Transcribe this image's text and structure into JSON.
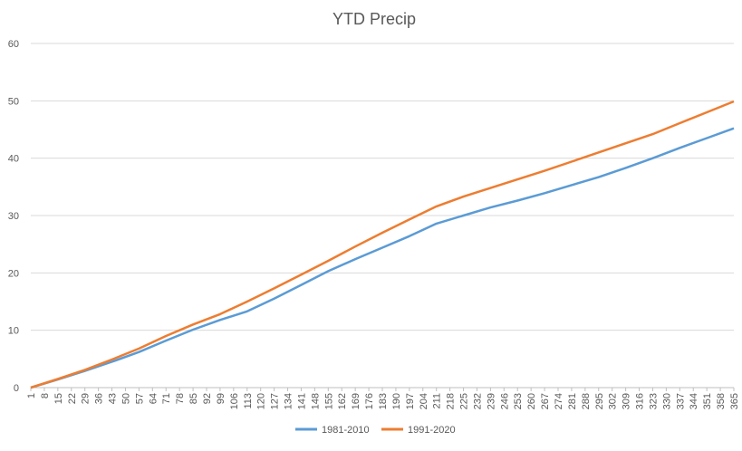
{
  "chart_data": {
    "type": "line",
    "title": "YTD Precip",
    "xlabel": "",
    "ylabel": "",
    "xlim": [
      1,
      365
    ],
    "ylim": [
      0,
      60
    ],
    "y_ticks": [
      0,
      10,
      20,
      30,
      40,
      50,
      60
    ],
    "x_tick_labels": [
      1,
      8,
      15,
      22,
      29,
      36,
      43,
      50,
      57,
      64,
      71,
      78,
      85,
      92,
      99,
      106,
      113,
      120,
      127,
      134,
      141,
      148,
      155,
      162,
      169,
      176,
      183,
      190,
      197,
      204,
      211,
      218,
      225,
      232,
      239,
      246,
      253,
      260,
      267,
      274,
      281,
      288,
      295,
      302,
      309,
      316,
      323,
      330,
      337,
      344,
      351,
      358,
      365
    ],
    "grid": "horizontal",
    "legend_position": "bottom",
    "series": [
      {
        "name": "1981-2010",
        "color": "#5b9bd5",
        "points": [
          [
            1,
            0
          ],
          [
            15,
            1.4
          ],
          [
            29,
            2.9
          ],
          [
            43,
            4.5
          ],
          [
            57,
            6.2
          ],
          [
            71,
            8.2
          ],
          [
            85,
            10.1
          ],
          [
            99,
            11.8
          ],
          [
            113,
            13.3
          ],
          [
            127,
            15.5
          ],
          [
            141,
            17.9
          ],
          [
            155,
            20.3
          ],
          [
            169,
            22.4
          ],
          [
            183,
            24.4
          ],
          [
            197,
            26.4
          ],
          [
            211,
            28.6
          ],
          [
            225,
            30.0
          ],
          [
            239,
            31.4
          ],
          [
            253,
            32.6
          ],
          [
            267,
            33.9
          ],
          [
            281,
            35.3
          ],
          [
            295,
            36.7
          ],
          [
            309,
            38.3
          ],
          [
            323,
            40.0
          ],
          [
            337,
            41.8
          ],
          [
            351,
            43.5
          ],
          [
            365,
            45.2
          ]
        ]
      },
      {
        "name": "1991-2020",
        "color": "#ed7d31",
        "points": [
          [
            1,
            0
          ],
          [
            15,
            1.5
          ],
          [
            29,
            3.1
          ],
          [
            43,
            4.9
          ],
          [
            57,
            6.8
          ],
          [
            71,
            9.0
          ],
          [
            85,
            11.0
          ],
          [
            99,
            12.8
          ],
          [
            113,
            15.0
          ],
          [
            127,
            17.3
          ],
          [
            141,
            19.7
          ],
          [
            155,
            22.1
          ],
          [
            169,
            24.6
          ],
          [
            183,
            27.0
          ],
          [
            197,
            29.3
          ],
          [
            211,
            31.6
          ],
          [
            225,
            33.3
          ],
          [
            239,
            34.8
          ],
          [
            253,
            36.3
          ],
          [
            267,
            37.8
          ],
          [
            281,
            39.4
          ],
          [
            295,
            41.0
          ],
          [
            309,
            42.6
          ],
          [
            323,
            44.2
          ],
          [
            337,
            46.1
          ],
          [
            351,
            48.0
          ],
          [
            365,
            49.9
          ]
        ]
      }
    ]
  }
}
